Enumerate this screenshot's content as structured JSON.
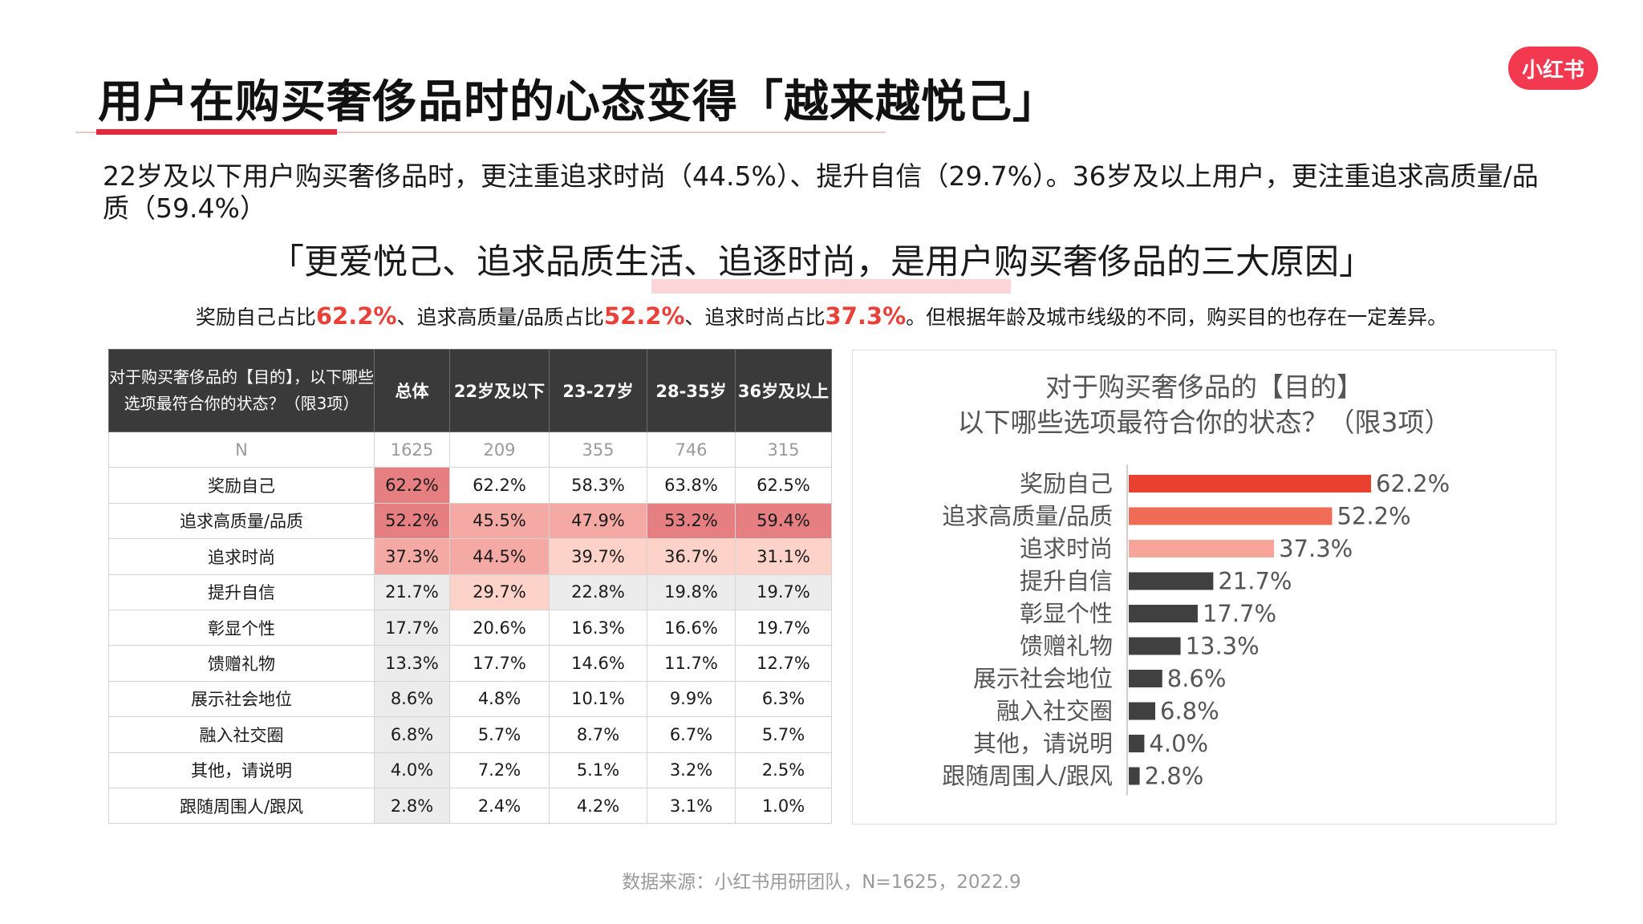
{
  "title": "用户在购买奢侈品时的心态变得「越来越悦己」",
  "logo": "小红书",
  "description": "22岁及以下用户购买奢侈品时，更注重追求时尚（44.5%）、提升自信（29.7%）。36岁及以上用户，更注重追求高质量/品质（59.4%）",
  "headline": "「更爱悦己、追求品质生活、追逐时尚，是用户购买奢侈品的三大原因」",
  "summary": {
    "t1": "奖励自己占比",
    "v1": "62.2%",
    "t2": "、追求高质量/品质占比",
    "v2": "52.2%",
    "t3": "、追求时尚占比",
    "v3": "37.3%",
    "t4": "。但根据年龄及城市线级的不同，购买目的也存在一定差异。"
  },
  "table": {
    "question": "对于购买奢侈品的【目的】，以下哪些选项最符合你的状态？（限3项）",
    "columns": [
      "总体",
      "22岁及以下",
      "23-27岁",
      "28-35岁",
      "36岁及以上"
    ],
    "n_label": "N",
    "n_values": [
      "1625",
      "209",
      "355",
      "746",
      "315"
    ],
    "rows": [
      {
        "label": "奖励自己",
        "values": [
          "62.2%",
          "62.2%",
          "58.3%",
          "63.8%",
          "62.5%"
        ]
      },
      {
        "label": "追求高质量/品质",
        "values": [
          "52.2%",
          "45.5%",
          "47.9%",
          "53.2%",
          "59.4%"
        ]
      },
      {
        "label": "追求时尚",
        "values": [
          "37.3%",
          "44.5%",
          "39.7%",
          "36.7%",
          "31.1%"
        ]
      },
      {
        "label": "提升自信",
        "values": [
          "21.7%",
          "29.7%",
          "22.8%",
          "19.8%",
          "19.7%"
        ]
      },
      {
        "label": "彰显个性",
        "values": [
          "17.7%",
          "20.6%",
          "16.3%",
          "16.6%",
          "19.7%"
        ]
      },
      {
        "label": "馈赠礼物",
        "values": [
          "13.3%",
          "17.7%",
          "14.6%",
          "11.7%",
          "12.7%"
        ]
      },
      {
        "label": "展示社会地位",
        "values": [
          "8.6%",
          "4.8%",
          "10.1%",
          "9.9%",
          "6.3%"
        ]
      },
      {
        "label": "融入社交圈",
        "values": [
          "6.8%",
          "5.7%",
          "8.7%",
          "6.7%",
          "5.7%"
        ]
      },
      {
        "label": "其他，请说明",
        "values": [
          "4.0%",
          "7.2%",
          "5.1%",
          "3.2%",
          "2.5%"
        ]
      },
      {
        "label": "跟随周围人/跟风",
        "values": [
          "2.8%",
          "2.4%",
          "4.2%",
          "3.1%",
          "1.0%"
        ]
      }
    ],
    "heat": [
      [
        "h1",
        "",
        "",
        "",
        ""
      ],
      [
        "h1",
        "h2",
        "h2",
        "h1",
        "h1"
      ],
      [
        "h2",
        "h2",
        "h3",
        "h3",
        "h3"
      ],
      [
        "g2",
        "h3",
        "g2",
        "g2",
        "g2"
      ],
      [
        "g2",
        "",
        "",
        "",
        ""
      ],
      [
        "g2",
        "",
        "",
        "",
        ""
      ],
      [
        "g2",
        "",
        "",
        "",
        ""
      ],
      [
        "g2",
        "",
        "",
        "",
        ""
      ],
      [
        "g2",
        "",
        "",
        "",
        ""
      ],
      [
        "g2",
        "",
        "",
        "",
        ""
      ]
    ],
    "heat_colors": {
      "h1": "#e57f82",
      "h2": "#f4a9a4",
      "h3": "#fcd2c9",
      "g2": "#ececec"
    }
  },
  "chart_data": {
    "type": "bar",
    "orientation": "horizontal",
    "title": "对于购买奢侈品的【目的】\n以下哪些选项最符合你的状态？（限3项）",
    "categories": [
      "奖励自己",
      "追求高质量/品质",
      "追求时尚",
      "提升自信",
      "彰显个性",
      "馈赠礼物",
      "展示社会地位",
      "融入社交圈",
      "其他，请说明",
      "跟随周围人/跟风"
    ],
    "values": [
      62.2,
      52.2,
      37.3,
      21.7,
      17.7,
      13.3,
      8.6,
      6.8,
      4.0,
      2.8
    ],
    "value_labels": [
      "62.2%",
      "52.2%",
      "37.3%",
      "21.7%",
      "17.7%",
      "13.3%",
      "8.6%",
      "6.8%",
      "4.0%",
      "2.8%"
    ],
    "colors": [
      "#e8412f",
      "#ef6d55",
      "#f7a49a",
      "#404040",
      "#404040",
      "#404040",
      "#404040",
      "#404040",
      "#404040",
      "#404040"
    ],
    "xlim": [
      0,
      62.2
    ],
    "grid": false,
    "legend": "none"
  },
  "footer": "数据来源：小红书用研团队，N=1625，2022.9"
}
